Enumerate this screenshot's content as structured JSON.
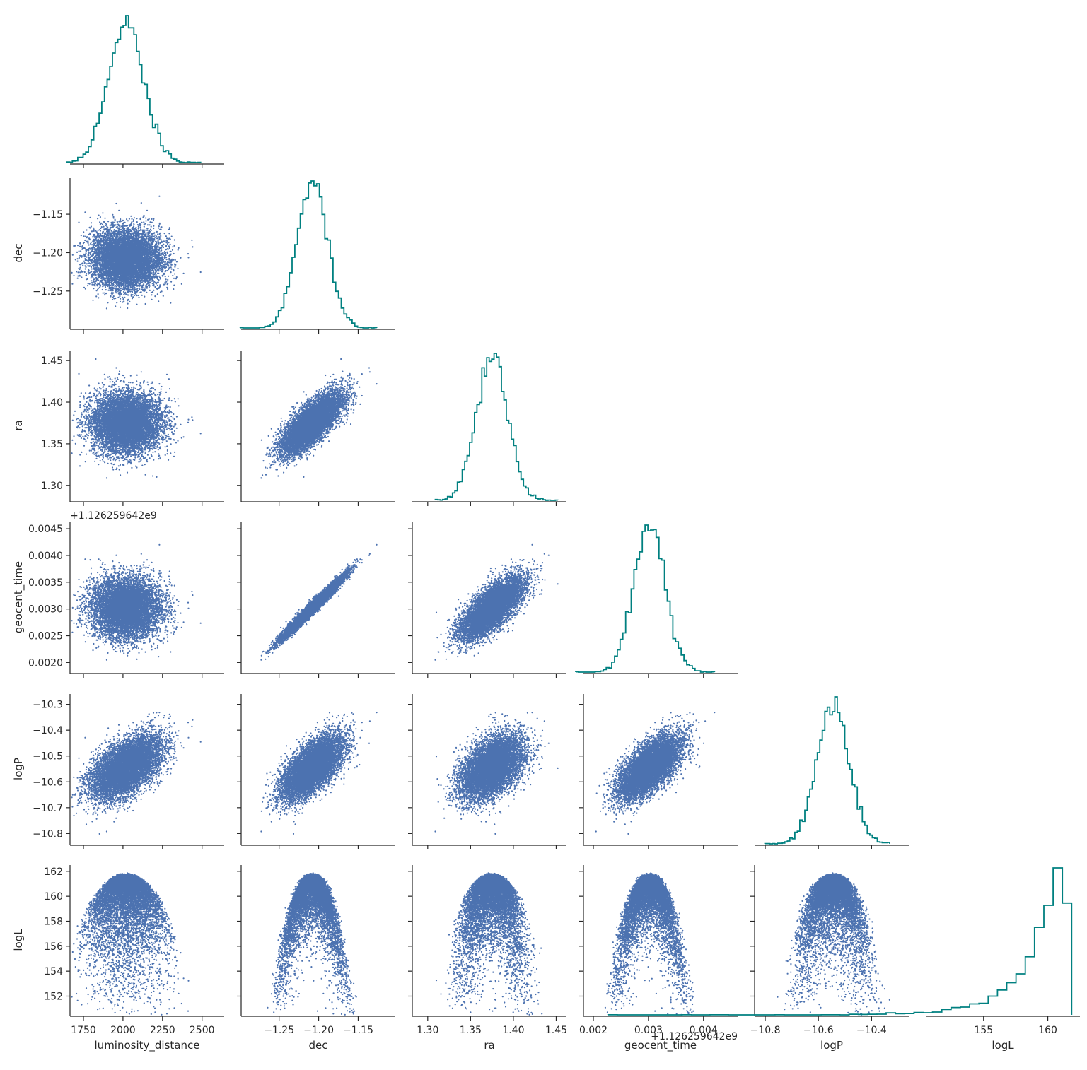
{
  "figure": {
    "variables": [
      "luminosity_distance",
      "dec",
      "ra",
      "geocent_time",
      "logP",
      "logL"
    ],
    "offset_label": "+1.126259642e9",
    "colors": {
      "scatter": "#4c72b0",
      "histogram": "#008080",
      "axis": "#262626"
    }
  },
  "chart_data": {
    "type": "scatter",
    "layout": "corner-pairplot",
    "title": "",
    "grid": false,
    "legend": "none",
    "variables": [
      {
        "name": "luminosity_distance",
        "xlabel": "luminosity_distance",
        "ylabel": "",
        "range": [
          1665,
          2640
        ],
        "ticks": [
          1750,
          2000,
          2250,
          2500
        ],
        "tick_labels": [
          "1750",
          "2000",
          "2250",
          "2500"
        ],
        "mean": 2020,
        "sd": 110
      },
      {
        "name": "dec",
        "xlabel": "dec",
        "ylabel": "dec",
        "range": [
          -1.298,
          -1.103
        ],
        "ticks": [
          -1.25,
          -1.2,
          -1.15
        ],
        "tick_labels": [
          "−1.25",
          "−1.20",
          "−1.15"
        ],
        "mean": -1.208,
        "sd": 0.019
      },
      {
        "name": "ra",
        "xlabel": "ra",
        "ylabel": "ra",
        "range": [
          1.282,
          1.462
        ],
        "ticks": [
          1.3,
          1.35,
          1.4,
          1.45
        ],
        "tick_labels": [
          "1.30",
          "1.35",
          "1.40",
          "1.45"
        ],
        "mean": 1.375,
        "sd": 0.018
      },
      {
        "name": "geocent_time",
        "xlabel": "geocent_time",
        "ylabel": "geocent_time",
        "offset": "+1.126259642e9",
        "range": [
          0.00182,
          0.00462
        ],
        "ticks": [
          0.002,
          0.003,
          0.004
        ],
        "tick_labels": [
          "0.002",
          "0.003",
          "0.004"
        ],
        "y_ticks": [
          0.002,
          0.0025,
          0.003,
          0.0035,
          0.004,
          0.0045
        ],
        "y_tick_labels": [
          "0.0020",
          "0.0025",
          "0.0030",
          "0.0035",
          "0.0040",
          "0.0045"
        ],
        "mean": 0.00302,
        "sd": 0.00028
      },
      {
        "name": "logP",
        "xlabel": "logP",
        "ylabel": "logP",
        "range": [
          -10.84,
          -10.26
        ],
        "ticks": [
          -10.8,
          -10.6,
          -10.4
        ],
        "tick_labels": [
          "−10.8",
          "−10.6",
          "−10.4"
        ],
        "y_ticks": [
          -10.8,
          -10.7,
          -10.6,
          -10.5,
          -10.4,
          -10.3
        ],
        "y_tick_labels": [
          "−10.8",
          "−10.7",
          "−10.6",
          "−10.5",
          "−10.4",
          "−10.3"
        ],
        "mean": -10.545,
        "sd": 0.06
      },
      {
        "name": "logL",
        "xlabel": "logL",
        "ylabel": "logL",
        "range": [
          150.5,
          162.5
        ],
        "ticks": [
          155,
          160
        ],
        "tick_labels": [
          "155",
          "160"
        ],
        "y_ticks": [
          152,
          154,
          156,
          158,
          160,
          162
        ],
        "y_tick_labels": [
          "152",
          "154",
          "156",
          "158",
          "160",
          "162"
        ],
        "max": 161.9
      }
    ],
    "correlations": [
      {
        "x": "dec",
        "y": "ra",
        "r": 0.75
      },
      {
        "x": "dec",
        "y": "geocent_time",
        "r": 0.98
      },
      {
        "x": "ra",
        "y": "geocent_time",
        "r": 0.72
      },
      {
        "x": "luminosity_distance",
        "y": "logP",
        "r": 0.55
      },
      {
        "x": "dec",
        "y": "logP",
        "r": 0.65
      },
      {
        "x": "ra",
        "y": "logP",
        "r": 0.45
      },
      {
        "x": "geocent_time",
        "y": "logP",
        "r": 0.65
      }
    ],
    "sample_count": 8000,
    "histogram_bins": 50
  }
}
